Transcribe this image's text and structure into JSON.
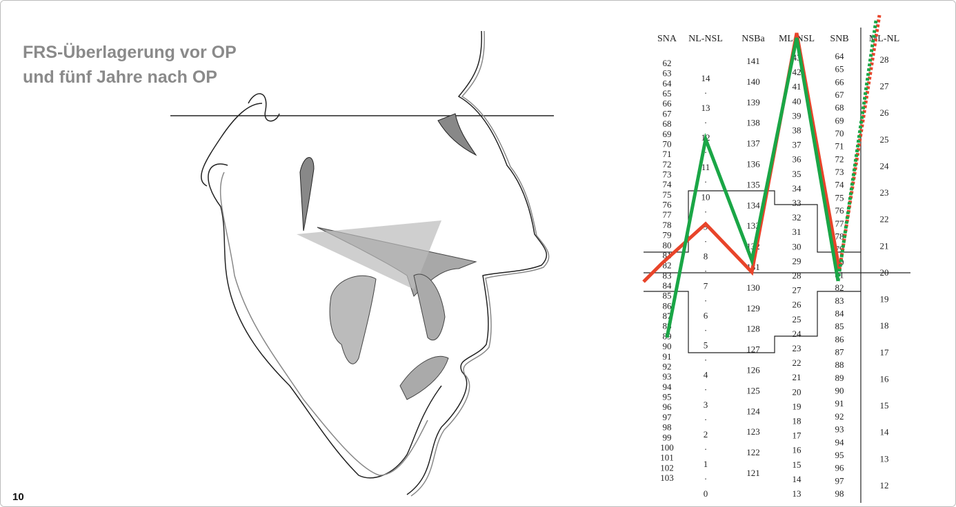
{
  "header": {
    "title_lines": [
      "FRS-Überlagerung vor OP",
      "und fünf Jahre nach OP"
    ],
    "figure_number": "10"
  },
  "table": {
    "columns": [
      {
        "header": "SNA",
        "values": [
          62,
          63,
          64,
          65,
          66,
          67,
          68,
          69,
          70,
          71,
          72,
          73,
          74,
          75,
          76,
          77,
          78,
          79,
          80,
          81,
          82,
          83,
          84,
          85,
          86,
          87,
          88,
          89,
          90,
          91,
          92,
          93,
          94,
          95,
          96,
          97,
          98,
          99,
          100,
          101,
          102,
          103
        ]
      },
      {
        "header": "NL-NSL",
        "values": [
          14,
          "·",
          13,
          "·",
          12,
          "·",
          11,
          "·",
          10,
          "·",
          9,
          "·",
          8,
          "·",
          7,
          "·",
          6,
          "·",
          5,
          "·",
          4,
          "·",
          3,
          "·",
          2,
          "·",
          1,
          "·",
          0
        ]
      },
      {
        "header": "NSBa",
        "values": [
          141,
          140,
          139,
          138,
          137,
          136,
          135,
          134,
          133,
          132,
          131,
          130,
          129,
          128,
          127,
          126,
          125,
          124,
          123,
          122,
          121
        ]
      },
      {
        "header": "ML-NSL",
        "values": [
          43,
          42,
          41,
          40,
          39,
          38,
          37,
          36,
          35,
          34,
          33,
          32,
          31,
          30,
          29,
          28,
          27,
          26,
          25,
          24,
          23,
          22,
          21,
          20,
          19,
          18,
          17,
          16,
          15,
          14,
          13
        ]
      },
      {
        "header": "SNB",
        "values": [
          64,
          65,
          66,
          67,
          68,
          69,
          70,
          71,
          72,
          73,
          74,
          75,
          76,
          77,
          78,
          79,
          80,
          81,
          82,
          83,
          84,
          85,
          86,
          87,
          88,
          89,
          90,
          91,
          92,
          93,
          94,
          95,
          96,
          97,
          98
        ]
      },
      {
        "header": "ML-NL",
        "values": [
          28,
          27,
          26,
          25,
          24,
          23,
          22,
          21,
          20,
          19,
          18,
          17,
          16,
          15,
          14,
          13,
          12
        ]
      }
    ]
  }
}
